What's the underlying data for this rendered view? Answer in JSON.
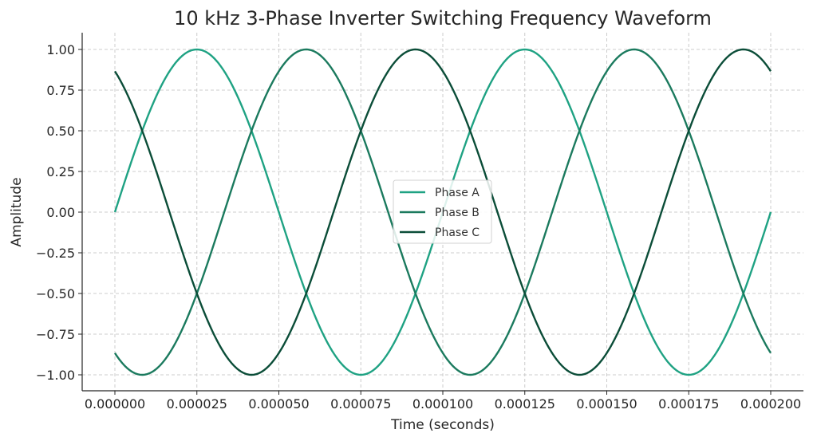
{
  "chart_data": {
    "type": "line",
    "title": "10 kHz 3-Phase Inverter Switching Frequency Waveform",
    "xlabel": "Time (seconds)",
    "ylabel": "Amplitude",
    "xlim": [
      0.0,
      0.0002
    ],
    "ylim": [
      -1.1,
      1.1
    ],
    "grid": true,
    "legend_position": "center",
    "x_ticks": [
      0.0,
      2.5e-05,
      5e-05,
      7.5e-05,
      0.0001,
      0.000125,
      0.00015,
      0.000175,
      0.0002
    ],
    "x_tick_labels": [
      "0.000000",
      "0.000025",
      "0.000050",
      "0.000075",
      "0.000100",
      "0.000125",
      "0.000150",
      "0.000175",
      "0.000200"
    ],
    "y_ticks": [
      1.0,
      0.75,
      0.5,
      0.25,
      0.0,
      -0.25,
      -0.5,
      -0.75,
      -1.0
    ],
    "y_tick_labels": [
      "1.00",
      "0.75",
      "0.50",
      "0.25",
      "0.00",
      "−0.25",
      "−0.50",
      "−0.75",
      "−1.00"
    ],
    "frequency_hz": 10000,
    "series": [
      {
        "name": "Phase A",
        "phase_shift_deg": 0,
        "color": "#1fa283"
      },
      {
        "name": "Phase B",
        "phase_shift_deg": -120,
        "color": "#1b7a5e"
      },
      {
        "name": "Phase C",
        "phase_shift_deg": 120,
        "color": "#0b4d38"
      }
    ]
  }
}
